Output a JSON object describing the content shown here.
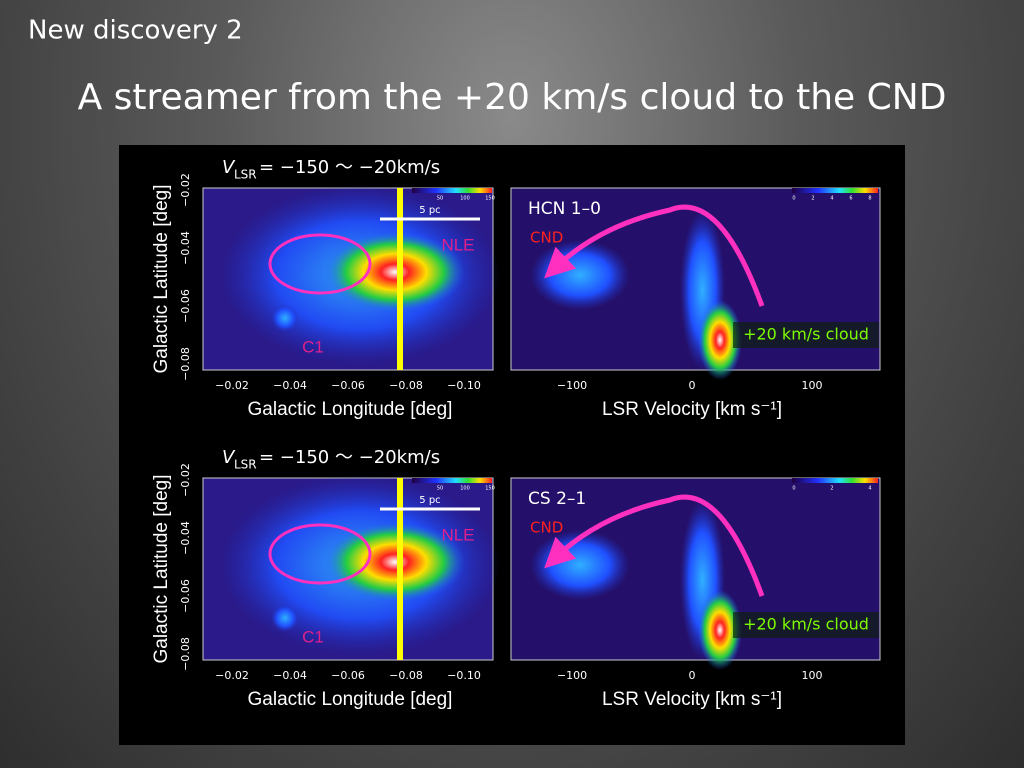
{
  "header": {
    "label": "New discovery 2",
    "title": "A streamer from the +20 km/s cloud to the CND"
  },
  "panels": [
    {
      "velocity_label": {
        "symbol": "V",
        "subscript": "LSR",
        "range": "= −150 〜 −20km/s"
      },
      "map": {
        "y_axis_label": "Galactic Latitude  [deg]",
        "y_ticks": [
          "−0.02",
          "−0.04",
          "−0.06",
          "−0.08"
        ],
        "x_ticks": [
          "−0.02",
          "−0.04",
          "−0.06",
          "−0.08",
          "−0.10"
        ],
        "x_axis_label": "Galactic Longitude  [deg]",
        "scale_bar": "5 pc",
        "colorbar_ticks": [
          "50",
          "100",
          "150"
        ],
        "labels": [
          "NLE",
          "C1"
        ]
      },
      "spectrum": {
        "line": "HCN 1–0",
        "feature": "CND",
        "cloud": "+20 km/s cloud",
        "x_ticks": [
          "−100",
          "0",
          "100"
        ],
        "x_axis_label": "LSR Velocity  [km s⁻¹]",
        "colorbar_ticks": [
          "0",
          "2",
          "4",
          "6",
          "8"
        ]
      }
    },
    {
      "velocity_label": {
        "symbol": "V",
        "subscript": "LSR",
        "range": "= −150 〜 −20km/s"
      },
      "map": {
        "y_axis_label": "Galactic Latitude  [deg]",
        "y_ticks": [
          "−0.02",
          "−0.04",
          "−0.06",
          "−0.08"
        ],
        "x_ticks": [
          "−0.02",
          "−0.04",
          "−0.06",
          "−0.08",
          "−0.10"
        ],
        "x_axis_label": "Galactic Longitude  [deg]",
        "scale_bar": "5 pc",
        "colorbar_ticks": [
          "50",
          "100",
          "150"
        ],
        "labels": [
          "NLE",
          "C1"
        ]
      },
      "spectrum": {
        "line": "CS 2–1",
        "feature": "CND",
        "cloud": "+20 km/s cloud",
        "x_ticks": [
          "−100",
          "0",
          "100"
        ],
        "x_axis_label": "LSR Velocity  [km s⁻¹]",
        "colorbar_ticks": [
          "0",
          "2",
          "4"
        ]
      }
    }
  ]
}
